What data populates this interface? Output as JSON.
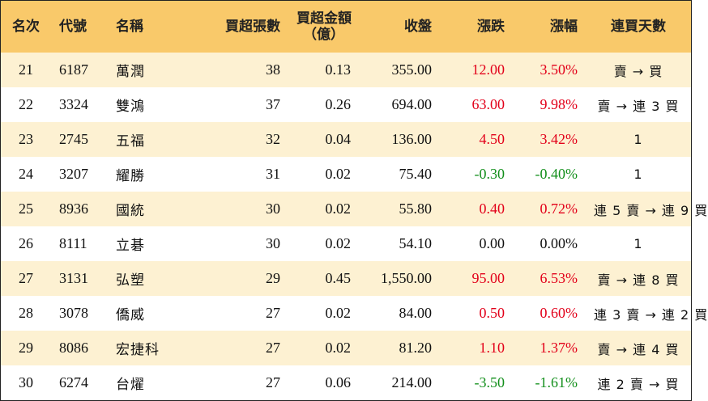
{
  "header": {
    "rank": "名次",
    "code": "代號",
    "name": "名稱",
    "net_buy_lots": "買超張數",
    "net_buy_amount_line1": "買超金額",
    "net_buy_amount_line2": "（億）",
    "close": "收盤",
    "change": "漲跌",
    "change_pct": "漲幅",
    "consecutive_days": "連買天數"
  },
  "rows": [
    {
      "rank": "21",
      "code": "6187",
      "name": "萬潤",
      "lots": "38",
      "amount": "0.13",
      "close": "355.00",
      "change": "12.00",
      "pct": "3.50%",
      "dir": "pos",
      "streak": "賣 → 買"
    },
    {
      "rank": "22",
      "code": "3324",
      "name": "雙鴻",
      "lots": "37",
      "amount": "0.26",
      "close": "694.00",
      "change": "63.00",
      "pct": "9.98%",
      "dir": "pos",
      "streak": "賣 → 連 3 買"
    },
    {
      "rank": "23",
      "code": "2745",
      "name": "五福",
      "lots": "32",
      "amount": "0.04",
      "close": "136.00",
      "change": "4.50",
      "pct": "3.42%",
      "dir": "pos",
      "streak": "1"
    },
    {
      "rank": "24",
      "code": "3207",
      "name": "耀勝",
      "lots": "31",
      "amount": "0.02",
      "close": "75.40",
      "change": "-0.30",
      "pct": "-0.40%",
      "dir": "neg",
      "streak": "1"
    },
    {
      "rank": "25",
      "code": "8936",
      "name": "國統",
      "lots": "30",
      "amount": "0.02",
      "close": "55.80",
      "change": "0.40",
      "pct": "0.72%",
      "dir": "pos",
      "streak": "連 5 賣 → 連 9 買"
    },
    {
      "rank": "26",
      "code": "8111",
      "name": "立碁",
      "lots": "30",
      "amount": "0.02",
      "close": "54.10",
      "change": "0.00",
      "pct": "0.00%",
      "dir": "zero",
      "streak": "1"
    },
    {
      "rank": "27",
      "code": "3131",
      "name": "弘塑",
      "lots": "29",
      "amount": "0.45",
      "close": "1,550.00",
      "change": "95.00",
      "pct": "6.53%",
      "dir": "pos",
      "streak": "賣 → 連 8 買"
    },
    {
      "rank": "28",
      "code": "3078",
      "name": "僑威",
      "lots": "27",
      "amount": "0.02",
      "close": "84.00",
      "change": "0.50",
      "pct": "0.60%",
      "dir": "pos",
      "streak": "連 3 賣 → 連 2 買"
    },
    {
      "rank": "29",
      "code": "8086",
      "name": "宏捷科",
      "lots": "27",
      "amount": "0.02",
      "close": "81.20",
      "change": "1.10",
      "pct": "1.37%",
      "dir": "pos",
      "streak": "賣 → 連 4 買"
    },
    {
      "rank": "30",
      "code": "6274",
      "name": "台燿",
      "lots": "27",
      "amount": "0.06",
      "close": "214.00",
      "change": "-3.50",
      "pct": "-1.61%",
      "dir": "neg",
      "streak": "連 2 賣 → 買"
    }
  ],
  "colors": {
    "header_bg": "#f9c96a",
    "alt_row_bg": "#fdf1d2",
    "up": "#e2001a",
    "down": "#138f1c"
  }
}
